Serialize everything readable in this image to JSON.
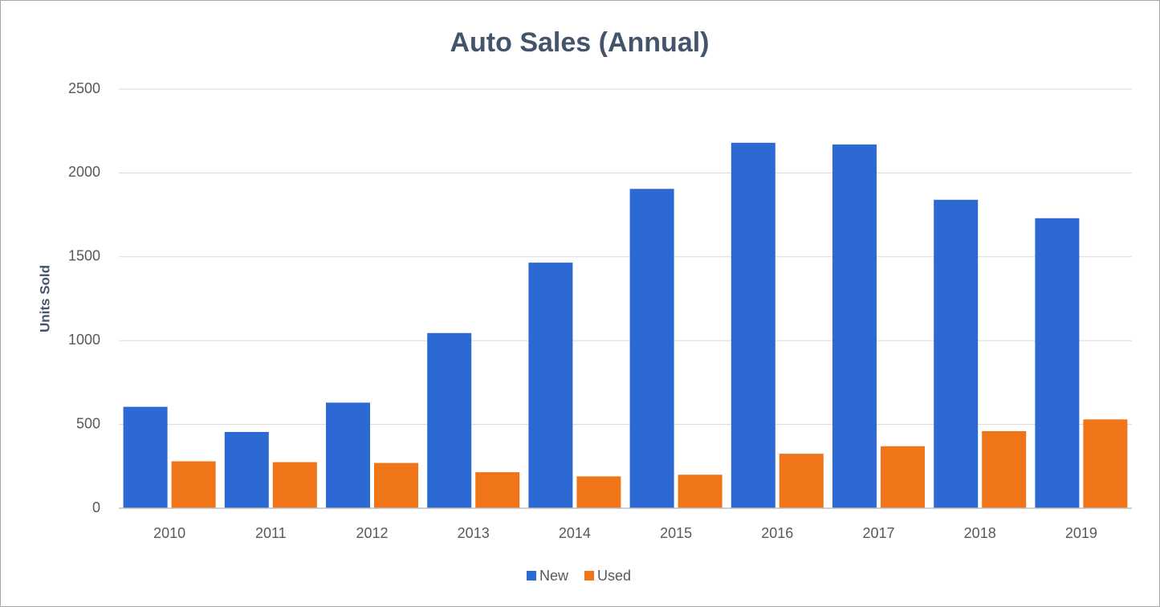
{
  "chart_data": {
    "type": "bar",
    "title": "Auto Sales (Annual)",
    "y_label": "Units Sold",
    "categories": [
      "2010",
      "2011",
      "2012",
      "2013",
      "2014",
      "2015",
      "2016",
      "2017",
      "2018",
      "2019"
    ],
    "series": [
      {
        "name": "New",
        "color": "#2d69d3",
        "values": [
          605,
          455,
          630,
          1045,
          1465,
          1905,
          2180,
          2170,
          1840,
          1730
        ]
      },
      {
        "name": "Used",
        "color": "#f07418",
        "values": [
          280,
          275,
          270,
          215,
          190,
          200,
          325,
          370,
          460,
          530
        ]
      }
    ],
    "ylim": [
      0,
      2500
    ],
    "yticks": [
      0,
      500,
      1000,
      1500,
      2000,
      2500
    ],
    "grid": true,
    "legend": "bottom"
  }
}
